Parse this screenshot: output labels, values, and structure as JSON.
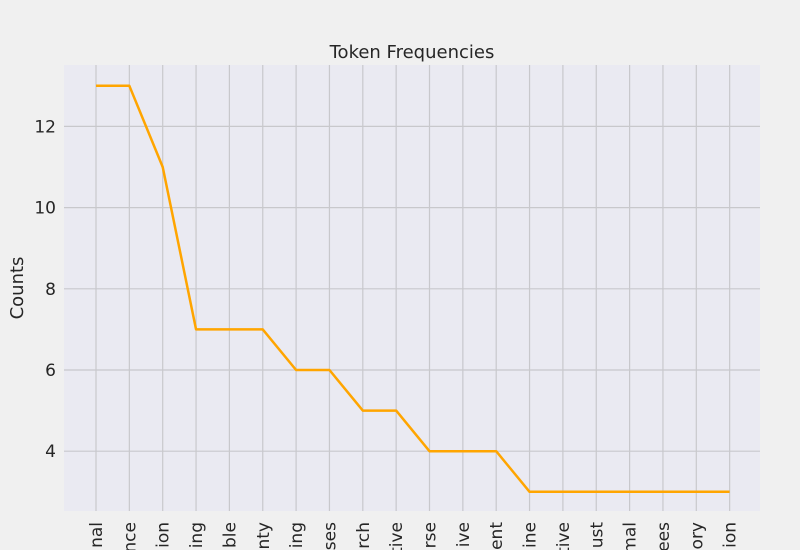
{
  "chart_data": {
    "type": "line",
    "title": "Token Frequencies",
    "xlabel": "",
    "ylabel": "Counts",
    "categories": [
      "nal",
      "nce",
      "ion",
      "ing",
      "ble",
      "nty",
      "ing",
      "ses",
      "rch",
      "tive",
      "rse",
      "ive",
      "ent",
      "ine",
      "tive",
      "ust",
      "mal",
      "ees",
      "ory",
      "ion"
    ],
    "values": [
      13,
      13,
      11,
      7,
      7,
      7,
      6,
      6,
      5,
      5,
      4,
      4,
      4,
      3,
      3,
      3,
      3,
      3,
      3,
      3
    ],
    "yticks": [
      "4",
      "6",
      "8",
      "10",
      "12"
    ],
    "ylim": [
      2.5,
      13.5
    ],
    "grid": true,
    "line_color": "#ffa500",
    "plot_background": "#eaeaf2"
  }
}
